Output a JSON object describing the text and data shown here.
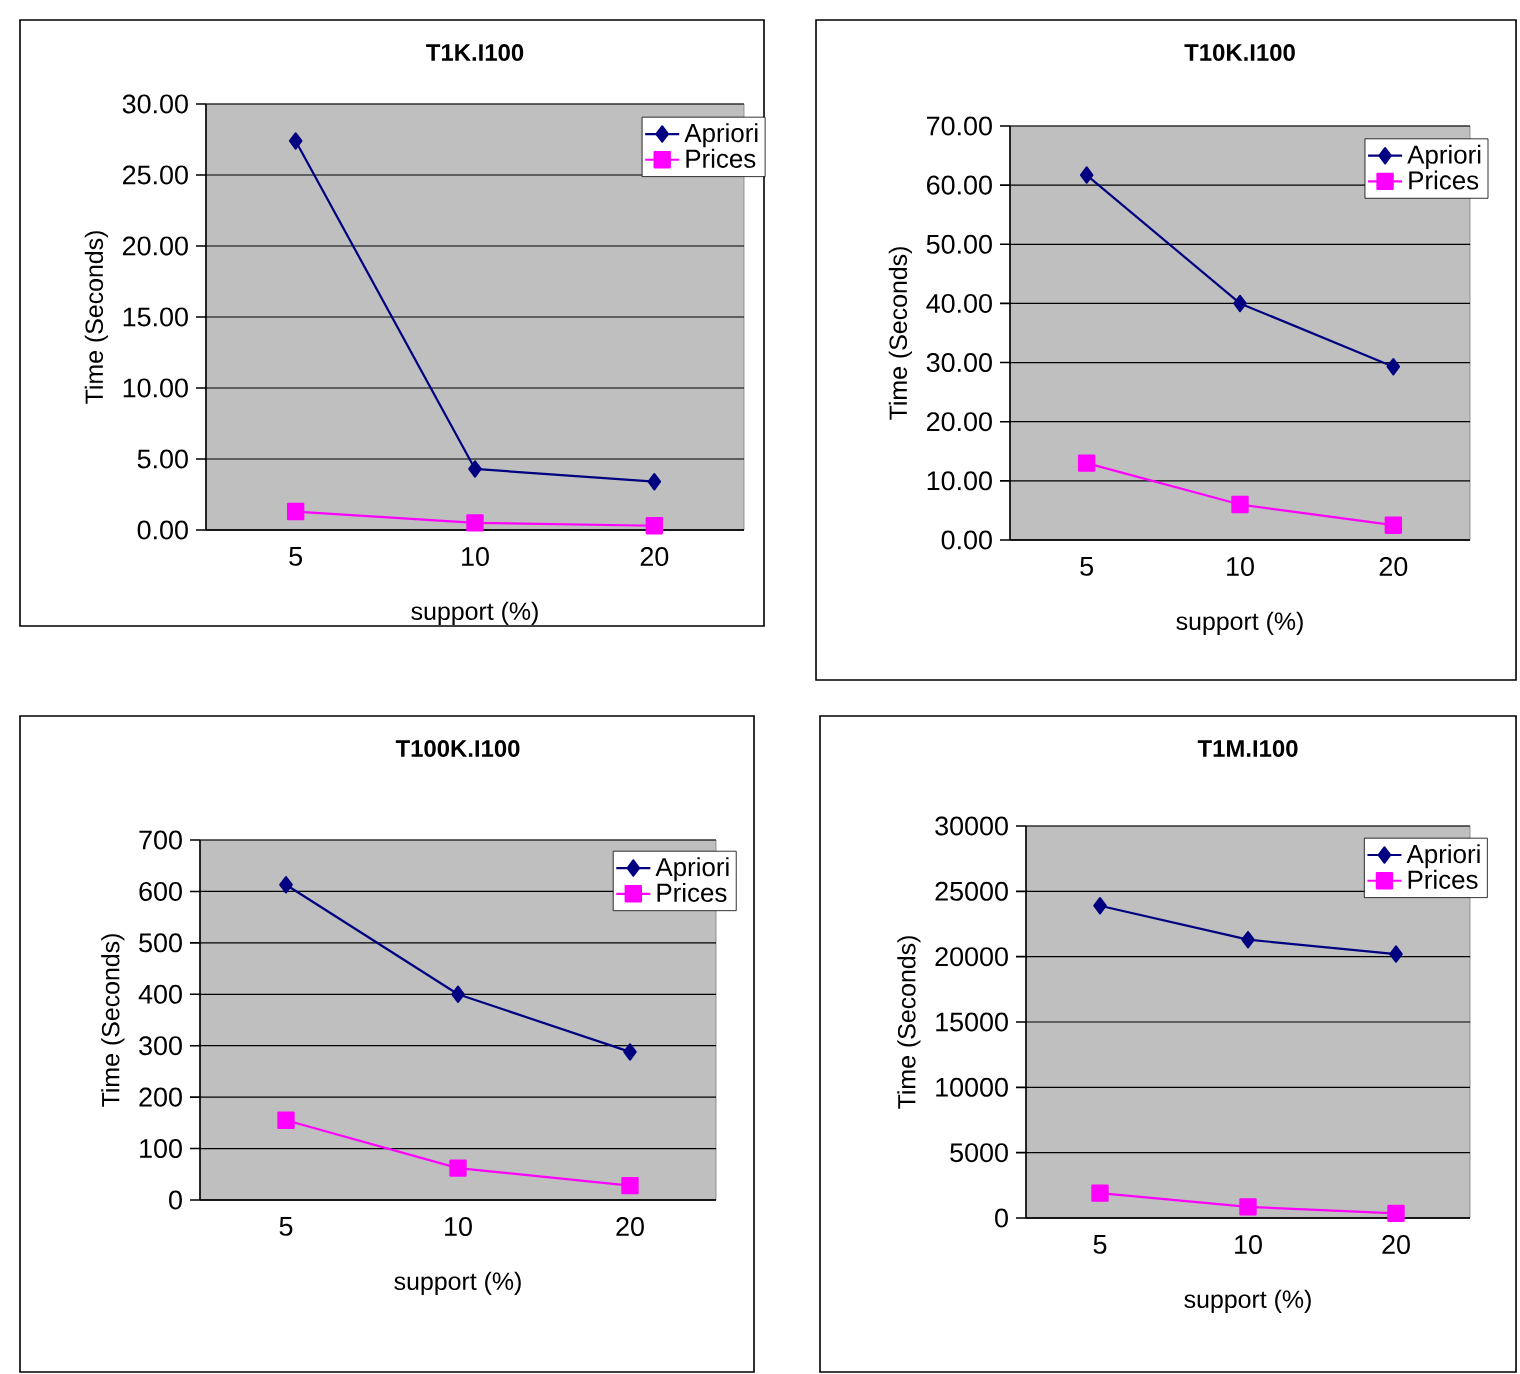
{
  "chart_data": [
    {
      "type": "line",
      "title": "T1K.I100",
      "xlabel": "support (%)",
      "ylabel": "Time (Seconds)",
      "categories": [
        "5",
        "10",
        "20"
      ],
      "series": [
        {
          "name": "Apriori",
          "color": "#000080",
          "marker": "diamond",
          "values": [
            27.4,
            4.3,
            3.4
          ]
        },
        {
          "name": "Prices",
          "color": "#ff00ff",
          "marker": "square",
          "values": [
            1.3,
            0.5,
            0.3
          ]
        }
      ],
      "ylim": [
        0,
        30
      ],
      "yticks": [
        {
          "value": 0,
          "label": "0.00"
        },
        {
          "value": 5,
          "label": "5.00"
        },
        {
          "value": 10,
          "label": "10.00"
        },
        {
          "value": 15,
          "label": "15.00"
        },
        {
          "value": 20,
          "label": "20.00"
        },
        {
          "value": 25,
          "label": "25.00"
        },
        {
          "value": 30,
          "label": "30.00"
        }
      ],
      "grid": "y",
      "legend": "top right"
    },
    {
      "type": "line",
      "title": "T10K.I100",
      "xlabel": "support (%)",
      "ylabel": "Time (Seconds)",
      "categories": [
        "5",
        "10",
        "20"
      ],
      "series": [
        {
          "name": "Apriori",
          "color": "#000080",
          "marker": "diamond",
          "values": [
            61.7,
            40.0,
            29.3
          ]
        },
        {
          "name": "Prices",
          "color": "#ff00ff",
          "marker": "square",
          "values": [
            13.0,
            6.0,
            2.5
          ]
        }
      ],
      "ylim": [
        0,
        70
      ],
      "yticks": [
        {
          "value": 0,
          "label": "0.00"
        },
        {
          "value": 10,
          "label": "10.00"
        },
        {
          "value": 20,
          "label": "20.00"
        },
        {
          "value": 30,
          "label": "30.00"
        },
        {
          "value": 40,
          "label": "40.00"
        },
        {
          "value": 50,
          "label": "50.00"
        },
        {
          "value": 60,
          "label": "60.00"
        },
        {
          "value": 70,
          "label": "70.00"
        }
      ],
      "grid": "y",
      "legend": "top right"
    },
    {
      "type": "line",
      "title": "T100K.I100",
      "xlabel": "support (%)",
      "ylabel": "Time (Seconds)",
      "categories": [
        "5",
        "10",
        "20"
      ],
      "series": [
        {
          "name": "Apriori",
          "color": "#000080",
          "marker": "diamond",
          "values": [
            613,
            400,
            288
          ]
        },
        {
          "name": "Prices",
          "color": "#ff00ff",
          "marker": "square",
          "values": [
            155,
            62,
            28
          ]
        }
      ],
      "ylim": [
        0,
        700
      ],
      "yticks": [
        0,
        100,
        200,
        300,
        400,
        500,
        600,
        700
      ],
      "grid": "y",
      "legend": "top right"
    },
    {
      "type": "line",
      "title": "T1M.I100",
      "xlabel": "support (%)",
      "ylabel": "Time (Seconds)",
      "categories": [
        "5",
        "10",
        "20"
      ],
      "series": [
        {
          "name": "Apriori",
          "color": "#000080",
          "marker": "diamond",
          "values": [
            23900,
            21300,
            20200
          ]
        },
        {
          "name": "Prices",
          "color": "#ff00ff",
          "marker": "square",
          "values": [
            1900,
            850,
            350
          ]
        }
      ],
      "ylim": [
        0,
        30000
      ],
      "yticks": [
        0,
        5000,
        10000,
        15000,
        20000,
        25000,
        30000
      ],
      "grid": "y",
      "legend": "top right"
    }
  ]
}
